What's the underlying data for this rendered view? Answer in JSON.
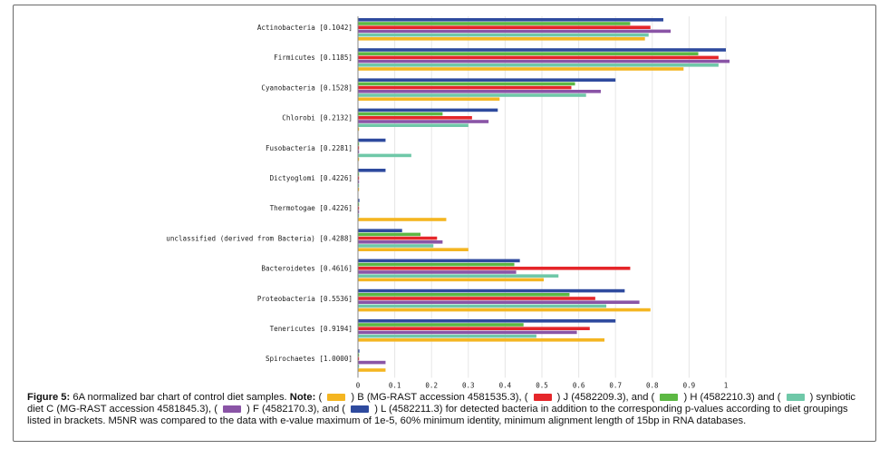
{
  "chart_data": {
    "type": "bar",
    "orientation": "horizontal",
    "xlim": [
      0,
      1
    ],
    "xticks": [
      "0",
      "0.1",
      "0.2",
      "0.3",
      "0.4",
      "0.5",
      "0.6",
      "0.7",
      "0.8",
      "0.9",
      "1"
    ],
    "categories": [
      "Actinobacteria [0.1042]",
      "Firmicutes [0.1185]",
      "Cyanobacteria [0.1528]",
      "Chlorobi [0.2132]",
      "Fusobacteria [0.2281]",
      "Dictyoglomi [0.4226]",
      "Thermotogae [0.4226]",
      "unclassified (derived from Bacteria) [0.4288]",
      "Bacteroidetes [0.4616]",
      "Proteobacteria [0.5536]",
      "Tenericutes [0.9194]",
      "Spirochaetes [1.0000]"
    ],
    "series": [
      {
        "color": "#2e4a9e",
        "values": [
          0.83,
          1.0,
          0.7,
          0.38,
          0.075,
          0.075,
          0.004,
          0.12,
          0.44,
          0.725,
          0.7,
          0.004
        ]
      },
      {
        "color": "#5cb843",
        "values": [
          0.74,
          0.925,
          0.59,
          0.23,
          0.003,
          0.003,
          0.003,
          0.17,
          0.425,
          0.575,
          0.45,
          0.003
        ]
      },
      {
        "color": "#e5262a",
        "values": [
          0.795,
          0.98,
          0.58,
          0.31,
          0.003,
          0.003,
          0.003,
          0.215,
          0.74,
          0.645,
          0.63,
          0.003
        ]
      },
      {
        "color": "#8a54a6",
        "values": [
          0.85,
          1.01,
          0.66,
          0.355,
          0.003,
          0.003,
          0.003,
          0.23,
          0.43,
          0.765,
          0.595,
          0.075
        ]
      },
      {
        "color": "#6fc8a8",
        "values": [
          0.79,
          0.98,
          0.62,
          0.3,
          0.145,
          0.003,
          0.003,
          0.205,
          0.545,
          0.675,
          0.485,
          0.003
        ]
      },
      {
        "color": "#f4b521",
        "values": [
          0.78,
          0.885,
          0.385,
          0.003,
          0.003,
          0.003,
          0.24,
          0.3,
          0.505,
          0.795,
          0.67,
          0.075
        ]
      }
    ]
  },
  "caption": {
    "figure_label": "Figure 5:",
    "intro": " 6A normalized bar chart of control diet samples. ",
    "note_label": "Note:",
    "p1": " ( ",
    "p2": " ) B (MG-RAST accession 4581535.3), ( ",
    "p3": " ) J (4582209.3), and ( ",
    "p4": " ) H (4582210.3) and ( ",
    "p5": " ) synbiotic diet C (MG-RAST accession 4581845.3), ( ",
    "p6": " ) F (4582170.3), and ( ",
    "p7": " ) L (4582211.3) for detected bacteria in addition to the corresponding p-values according to diet groupings listed in brackets. M5NR was compared to the data with e-value maximum of 1e-5, 60% minimum identity, minimum alignment length of 15bp in RNA databases.",
    "swatch_colors": [
      "#f4b521",
      "#e5262a",
      "#5cb843",
      "#6fc8a8",
      "#8a54a6",
      "#2e4a9e"
    ]
  }
}
